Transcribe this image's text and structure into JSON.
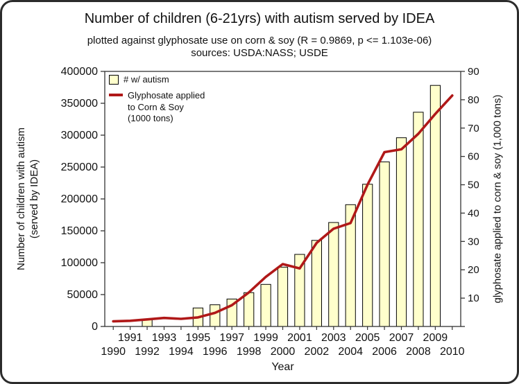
{
  "header": {
    "title": "Number of children (6-21yrs) with autism served by IDEA",
    "subtitle": "plotted against glyphosate use on corn & soy (R = 0.9869, p <= 1.103e-06)",
    "sources": "sources: USDA:NASS; USDE"
  },
  "colors": {
    "bar_fill": "#ffffcc",
    "bar_border": "#000000",
    "line": "#b01818",
    "axis": "#333333",
    "text": "#111111"
  },
  "chart_data": {
    "type": "bar",
    "x": [
      1990,
      1991,
      1992,
      1993,
      1994,
      1995,
      1996,
      1997,
      1998,
      1999,
      2000,
      2001,
      2002,
      2003,
      2004,
      2005,
      2006,
      2007,
      2008,
      2009,
      2010
    ],
    "series": [
      {
        "name": "# w/ autism",
        "type": "bar",
        "axis": "left",
        "color": "#ffffcc",
        "border": "#000000",
        "values": [
          null,
          null,
          11000,
          null,
          null,
          29000,
          34000,
          43000,
          53000,
          66000,
          93000,
          113000,
          135000,
          163000,
          191000,
          223000,
          258000,
          296000,
          336000,
          378000,
          null
        ]
      },
      {
        "name": "Glyphosate applied to Corn & Soy (1000 tons)",
        "type": "line",
        "axis": "right",
        "color": "#b01818",
        "values": [
          1.8,
          2.0,
          2.5,
          3.0,
          2.7,
          3.2,
          4.8,
          7.5,
          12,
          17.5,
          22,
          20.5,
          29.5,
          34.5,
          36.5,
          50,
          61.5,
          62.5,
          68,
          75,
          81.5
        ]
      }
    ],
    "left_axis": {
      "title_line1": "Number of children with autism",
      "title_line2": "(served by IDEA)",
      "min": 0,
      "max": 400000,
      "tick_step": 50000,
      "tick_labels": [
        "0",
        "50000",
        "100000",
        "150000",
        "200000",
        "250000",
        "300000",
        "350000",
        "400000"
      ]
    },
    "right_axis": {
      "title": "glyphosate applied to corn & soy (1,000 tons)",
      "min": 0,
      "max": 90,
      "tick_step": 10,
      "tick_labels": [
        "10",
        "20",
        "30",
        "40",
        "50",
        "60",
        "70",
        "80",
        "90"
      ]
    },
    "x_axis": {
      "title": "Year",
      "row1": [
        "1991",
        "1993",
        "1995",
        "1997",
        "1999",
        "2001",
        "2003",
        "2005",
        "2007",
        "2009"
      ],
      "row2": [
        "1990",
        "1992",
        "1994",
        "1996",
        "1998",
        "2000",
        "2002",
        "2004",
        "2006",
        "2008",
        "2010"
      ]
    },
    "legend": [
      {
        "label": "# w/ autism",
        "swatch": "bar"
      },
      {
        "label": "Glyphosate applied to Corn & Soy (1000 tons)",
        "swatch": "line"
      }
    ],
    "grid": false,
    "legend_position": "top-left-inside"
  }
}
